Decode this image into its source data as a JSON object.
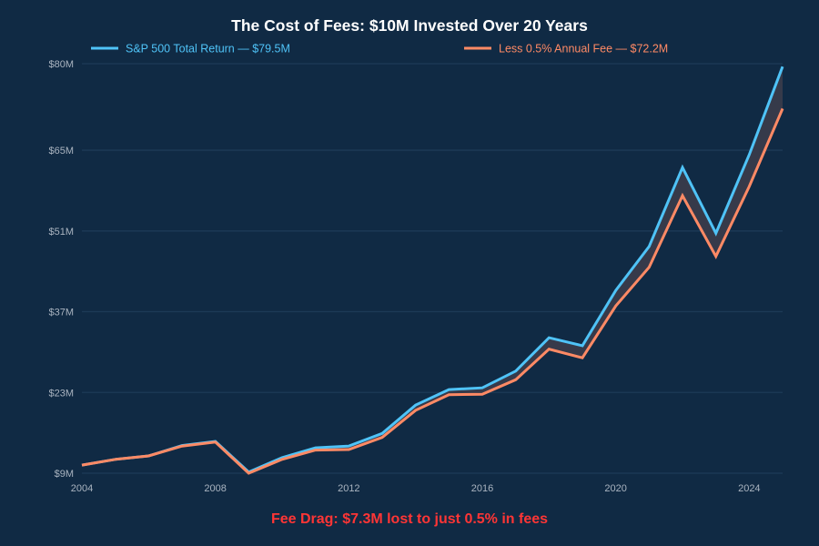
{
  "chart_data": {
    "type": "line",
    "title": "The Cost of Fees: $10M Invested Over 20 Years",
    "xlabel": "",
    "ylabel": "",
    "x": [
      2004,
      2005,
      2006,
      2007,
      2008,
      2009,
      2010,
      2011,
      2012,
      2013,
      2014,
      2015,
      2016,
      2017,
      2018,
      2019,
      2020,
      2021,
      2022,
      2023,
      2024,
      2025
    ],
    "xlim": [
      2004,
      2025
    ],
    "ylim": [
      9,
      80
    ],
    "x_ticks": [
      2004,
      2008,
      2012,
      2016,
      2020,
      2024
    ],
    "x_tick_labels": [
      "2004",
      "2008",
      "2012",
      "2016",
      "2020",
      "2024"
    ],
    "y_ticks": [
      9,
      23,
      37,
      51,
      65,
      80
    ],
    "y_tick_labels": [
      "$9M",
      "$23M",
      "$37M",
      "$51M",
      "$65M",
      "$80M"
    ],
    "grid": "horizontal",
    "legend_position": "top",
    "series": [
      {
        "name": "S&P 500 Total Return — $79.5M",
        "color": "#4fc3f7",
        "values": [
          10.4,
          11.4,
          12.0,
          13.8,
          14.5,
          9.2,
          11.7,
          13.4,
          13.7,
          15.9,
          20.8,
          23.5,
          23.8,
          26.7,
          32.5,
          31.1,
          40.7,
          48.3,
          62.0,
          50.6,
          64.2,
          79.5
        ]
      },
      {
        "name": "Less 0.5% Annual Fee — $72.2M",
        "color": "#ff8a65",
        "values": [
          10.4,
          11.4,
          12.0,
          13.7,
          14.4,
          9.0,
          11.4,
          13.0,
          13.1,
          15.2,
          19.9,
          22.6,
          22.7,
          25.2,
          30.5,
          29.0,
          38.0,
          44.7,
          57.1,
          46.6,
          58.7,
          72.2
        ]
      }
    ],
    "fill_between": {
      "color": "#363a4a",
      "label": "fee gap"
    },
    "annotation": {
      "text": "Fee Drag: $7.3M lost to just 0.5% in fees",
      "color": "#ff3535",
      "position": "bottom-center"
    }
  }
}
